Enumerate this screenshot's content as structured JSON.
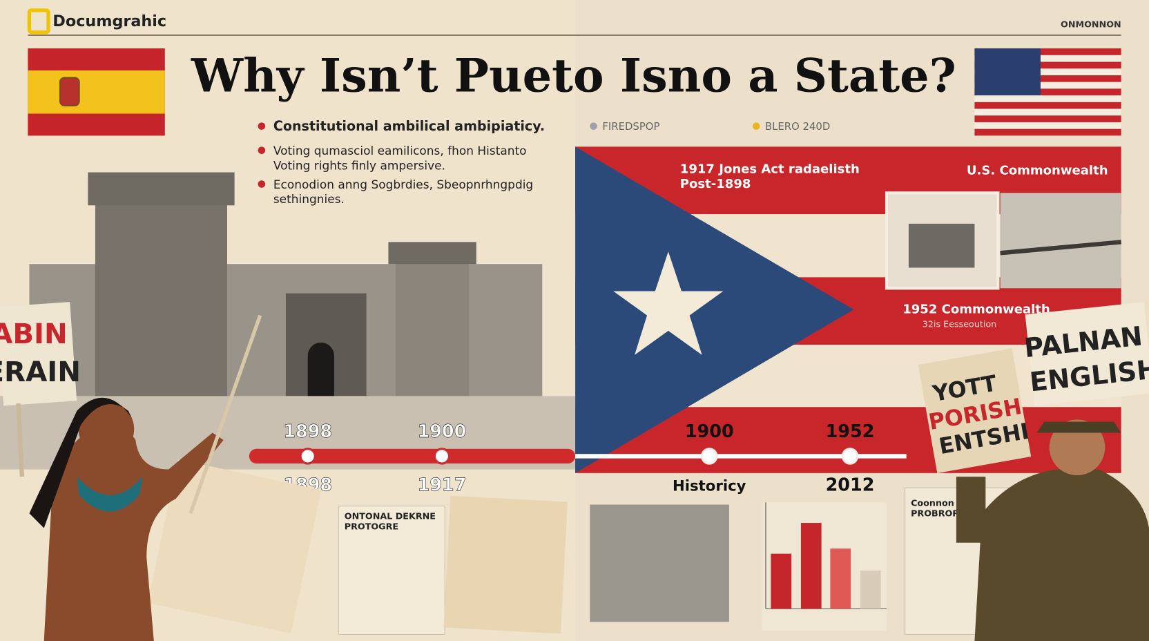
{
  "header": {
    "brand": "Documgrahic",
    "corner": "ONMONNON"
  },
  "title": "Why Isn’t Pueto Isno a State?",
  "bullets": [
    [
      "Constitutional ambilical ambipiaticy."
    ],
    [
      "Voting qumasciol eamilicons, fhon Histanto",
      "Voting rights finly ampersive."
    ],
    [
      "Econodion anng Sogbrdies, Sbeopnrhngpdig",
      "sethingnies."
    ]
  ],
  "legend": [
    "FIREDSPOP",
    "BLERO 240D"
  ],
  "panel": {
    "jones_act": [
      "1917 Jones Act  radaelisth",
      "Post-1898"
    ],
    "commonwealth_us": "U.S. Commonwealth",
    "commonwealth_1952": "1952 Commonwealth",
    "commonwealth_sub": "32is Eesseoution"
  },
  "timeline": {
    "upper": [
      "1898",
      "1900",
      "1900",
      "1952"
    ],
    "lower": [
      "1898",
      "1917",
      "Historicy",
      "2012"
    ]
  },
  "signs": {
    "left": [
      "ABIN",
      "ERAIN"
    ],
    "middle": [
      "YOTT",
      "PORISH",
      "ENTSHI"
    ],
    "right": [
      "PALNAN",
      "ENGLISH"
    ]
  },
  "clippings": {
    "left": [
      "ONTONAL DEKRNE",
      "PROTOGRE"
    ],
    "right": [
      "Coonnon",
      "PROBRORE"
    ]
  }
}
